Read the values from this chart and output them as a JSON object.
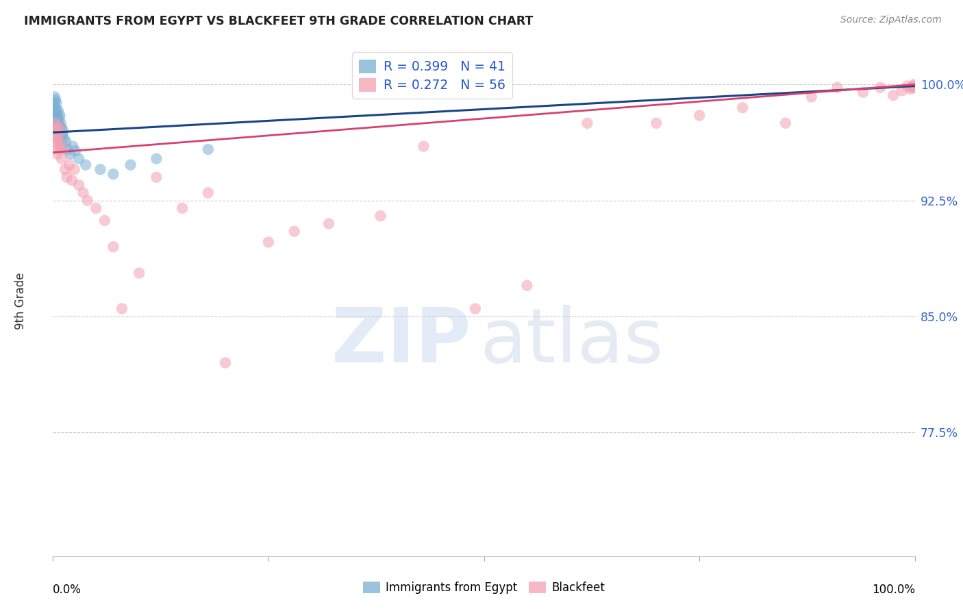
{
  "title": "IMMIGRANTS FROM EGYPT VS BLACKFEET 9TH GRADE CORRELATION CHART",
  "source": "Source: ZipAtlas.com",
  "ylabel": "9th Grade",
  "ytick_labels": [
    "100.0%",
    "92.5%",
    "85.0%",
    "77.5%"
  ],
  "ytick_values": [
    1.0,
    0.925,
    0.85,
    0.775
  ],
  "xlim": [
    0.0,
    1.0
  ],
  "ylim": [
    0.695,
    1.025
  ],
  "egypt_color": "#7bafd4",
  "blackfeet_color": "#f4a0b0",
  "egypt_line_color": "#1a4488",
  "blackfeet_line_color": "#d84070",
  "egypt_R": 0.399,
  "egypt_N": 41,
  "blackfeet_R": 0.272,
  "blackfeet_N": 56,
  "egypt_x": [
    0.001,
    0.001,
    0.002,
    0.002,
    0.002,
    0.003,
    0.003,
    0.003,
    0.004,
    0.004,
    0.004,
    0.005,
    0.005,
    0.005,
    0.006,
    0.006,
    0.006,
    0.007,
    0.007,
    0.008,
    0.008,
    0.009,
    0.009,
    0.01,
    0.01,
    0.011,
    0.012,
    0.013,
    0.015,
    0.017,
    0.02,
    0.023,
    0.026,
    0.03,
    0.038,
    0.055,
    0.07,
    0.09,
    0.12,
    0.18,
    0.38
  ],
  "egypt_y": [
    0.988,
    0.98,
    0.985,
    0.978,
    0.992,
    0.982,
    0.975,
    0.99,
    0.984,
    0.977,
    0.988,
    0.972,
    0.98,
    0.968,
    0.975,
    0.983,
    0.97,
    0.978,
    0.965,
    0.972,
    0.98,
    0.965,
    0.975,
    0.96,
    0.972,
    0.968,
    0.97,
    0.965,
    0.963,
    0.958,
    0.955,
    0.96,
    0.957,
    0.952,
    0.948,
    0.945,
    0.942,
    0.948,
    0.952,
    0.958,
    0.998
  ],
  "blackfeet_x": [
    0.001,
    0.002,
    0.002,
    0.003,
    0.003,
    0.004,
    0.004,
    0.005,
    0.005,
    0.006,
    0.007,
    0.008,
    0.009,
    0.01,
    0.012,
    0.014,
    0.016,
    0.019,
    0.022,
    0.025,
    0.03,
    0.035,
    0.04,
    0.05,
    0.06,
    0.07,
    0.08,
    0.1,
    0.12,
    0.15,
    0.18,
    0.2,
    0.25,
    0.28,
    0.32,
    0.38,
    0.43,
    0.49,
    0.55,
    0.62,
    0.7,
    0.75,
    0.8,
    0.85,
    0.88,
    0.91,
    0.94,
    0.96,
    0.975,
    0.985,
    0.991,
    0.995,
    0.997,
    0.998,
    0.999,
    0.999
  ],
  "blackfeet_y": [
    0.968,
    0.972,
    0.965,
    0.975,
    0.962,
    0.968,
    0.958,
    0.965,
    0.955,
    0.972,
    0.96,
    0.963,
    0.97,
    0.952,
    0.958,
    0.945,
    0.94,
    0.948,
    0.938,
    0.945,
    0.935,
    0.93,
    0.925,
    0.92,
    0.912,
    0.895,
    0.855,
    0.878,
    0.94,
    0.92,
    0.93,
    0.82,
    0.898,
    0.905,
    0.91,
    0.915,
    0.96,
    0.855,
    0.87,
    0.975,
    0.975,
    0.98,
    0.985,
    0.975,
    0.992,
    0.998,
    0.995,
    0.998,
    0.993,
    0.996,
    0.999,
    0.997,
    0.998,
    0.999,
    0.998,
    1.0
  ],
  "egypt_trendline": [
    0.969,
    0.999
  ],
  "blackfeet_trendline": [
    0.956,
    1.0
  ]
}
